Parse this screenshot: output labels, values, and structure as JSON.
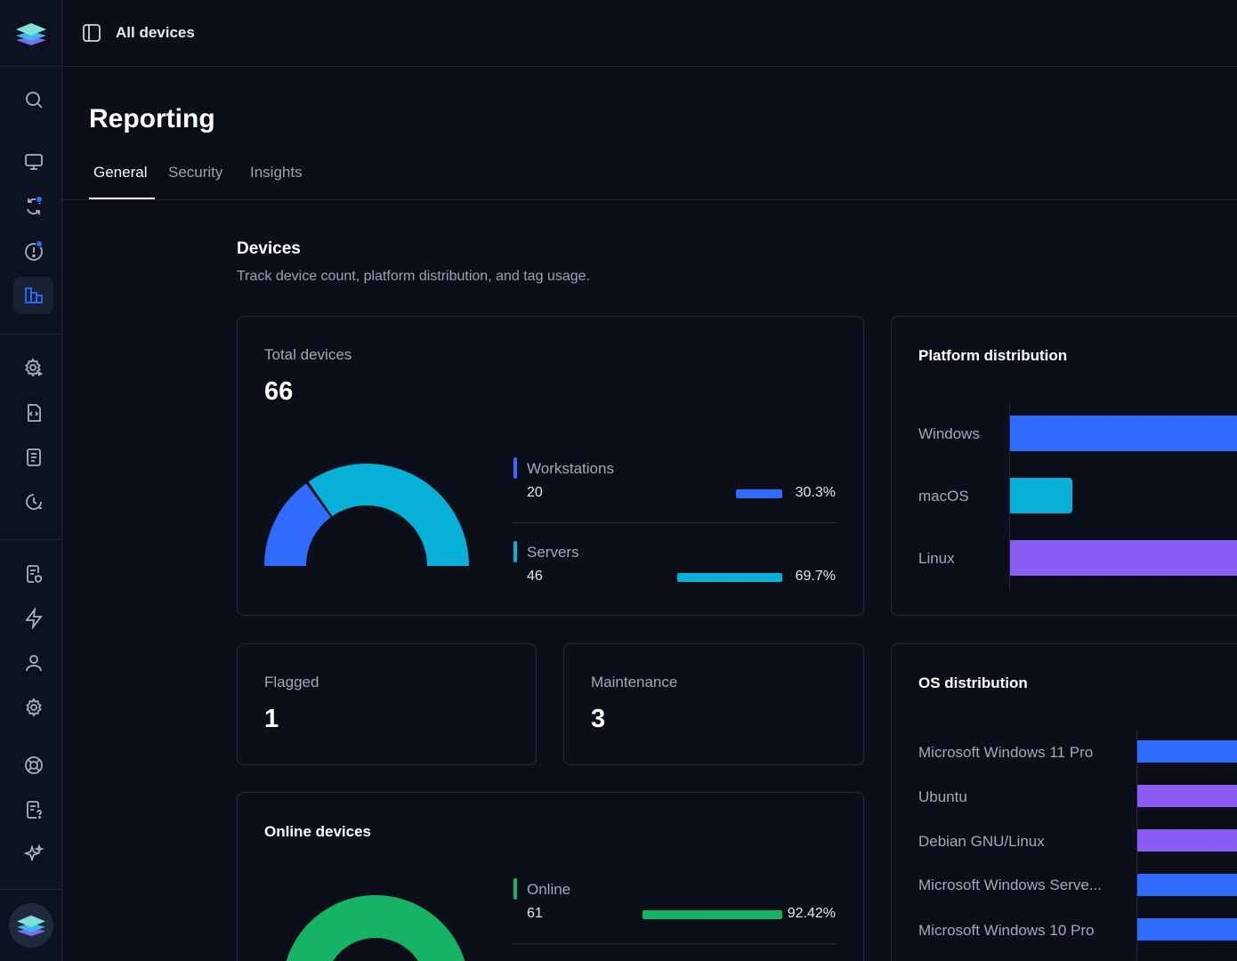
{
  "topbar": {
    "title": "All devices"
  },
  "page": {
    "title": "Reporting"
  },
  "tabs": [
    {
      "label": "General",
      "active": true
    },
    {
      "label": "Security",
      "active": false
    },
    {
      "label": "Insights",
      "active": false
    }
  ],
  "devices_section": {
    "title": "Devices",
    "subtitle": "Track device count, platform distribution, and tag usage."
  },
  "total_devices": {
    "label": "Total devices",
    "value": "66",
    "legend": [
      {
        "name": "Workstations",
        "count": "20",
        "percent": "30.3%",
        "fraction": 0.303,
        "color": "#2f6bff"
      },
      {
        "name": "Servers",
        "count": "46",
        "percent": "69.7%",
        "fraction": 0.697,
        "color": "#06b0d6"
      }
    ]
  },
  "flagged": {
    "label": "Flagged",
    "value": "1"
  },
  "maintenance": {
    "label": "Maintenance",
    "value": "3"
  },
  "online_devices": {
    "title": "Online devices",
    "legend": [
      {
        "name": "Online",
        "count": "61",
        "percent": "92.42%",
        "fraction": 0.9242,
        "color": "#16b364"
      }
    ]
  },
  "platform_distribution": {
    "title": "Platform distribution",
    "items": [
      {
        "label": "Windows",
        "color": "#2f6bff"
      },
      {
        "label": "macOS",
        "color": "#06b0d6"
      },
      {
        "label": "Linux",
        "color": "#8b5cf6"
      }
    ]
  },
  "os_distribution": {
    "title": "OS distribution",
    "items": [
      {
        "label": "Microsoft Windows 11 Pro",
        "color": "#2f6bff"
      },
      {
        "label": "Ubuntu",
        "color": "#8b5cf6"
      },
      {
        "label": "Debian GNU/Linux",
        "color": "#8b5cf6"
      },
      {
        "label": "Microsoft Windows Serve...",
        "color": "#2f6bff"
      },
      {
        "label": "Microsoft Windows 10 Pro",
        "color": "#2f6bff"
      }
    ]
  },
  "sidebar": {
    "icons": [
      "search-icon",
      "monitor-icon",
      "sync-icon",
      "alert-icon",
      "reports-icon",
      "settings-play-icon",
      "script-file-icon",
      "document-icon",
      "history-icon",
      "policy-icon",
      "lightning-icon",
      "user-icon",
      "gear-icon",
      "support-icon",
      "help-doc-icon",
      "sparkles-icon"
    ]
  }
}
